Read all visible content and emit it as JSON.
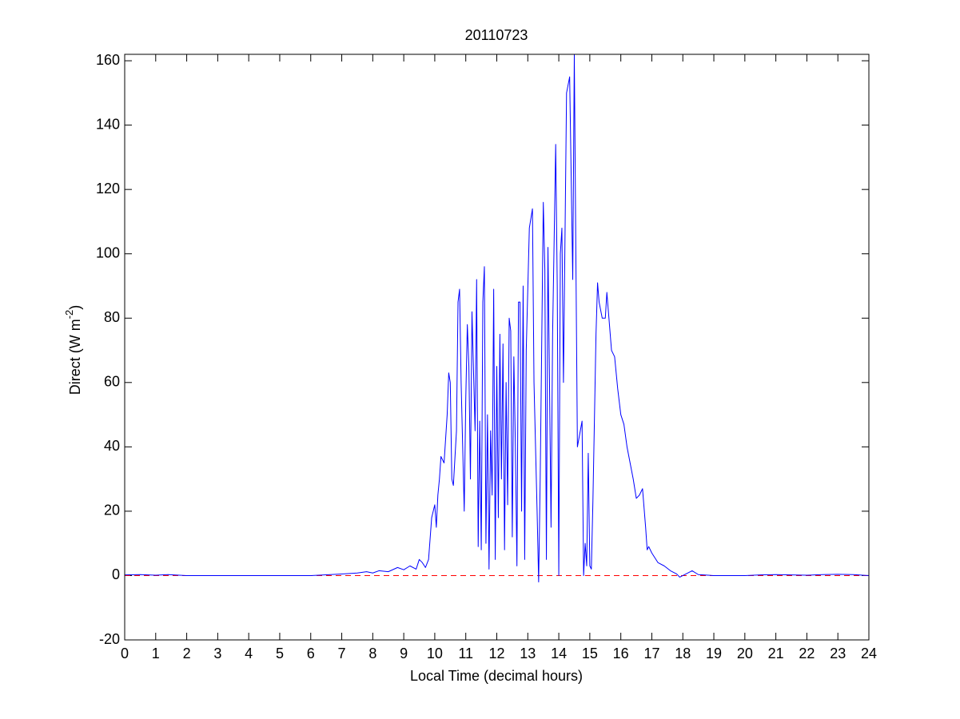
{
  "chart_data": {
    "type": "line",
    "title": "20110723",
    "xlabel": "Local Time (decimal hours)",
    "ylabel": [
      "Direct (W m",
      "-2",
      ")"
    ],
    "xlim": [
      0,
      24
    ],
    "ylim": [
      -20,
      162
    ],
    "xticks": [
      0,
      1,
      2,
      3,
      4,
      5,
      6,
      7,
      8,
      9,
      10,
      11,
      12,
      13,
      14,
      15,
      16,
      17,
      18,
      19,
      20,
      21,
      22,
      23,
      24
    ],
    "yticks": [
      -20,
      0,
      20,
      40,
      60,
      80,
      100,
      120,
      140,
      160
    ],
    "reference_line": {
      "y": 0,
      "color": "#ff0000",
      "style": "dashed"
    },
    "x": [
      0,
      0.5,
      1,
      1.4,
      2,
      3,
      4,
      5,
      6,
      7,
      7.5,
      7.8,
      8,
      8.2,
      8.5,
      8.8,
      9,
      9.2,
      9.4,
      9.5,
      9.6,
      9.7,
      9.8,
      9.9,
      10,
      10.05,
      10.1,
      10.15,
      10.2,
      10.3,
      10.4,
      10.45,
      10.5,
      10.55,
      10.6,
      10.7,
      10.75,
      10.8,
      10.85,
      10.9,
      10.95,
      11,
      11.05,
      11.1,
      11.15,
      11.2,
      11.3,
      11.35,
      11.4,
      11.45,
      11.5,
      11.55,
      11.6,
      11.65,
      11.7,
      11.75,
      11.8,
      11.85,
      11.9,
      11.95,
      12,
      12.05,
      12.1,
      12.15,
      12.2,
      12.25,
      12.3,
      12.35,
      12.4,
      12.45,
      12.5,
      12.55,
      12.6,
      12.65,
      12.7,
      12.75,
      12.8,
      12.85,
      12.9,
      12.95,
      13.05,
      13.15,
      13.2,
      13.3,
      13.35,
      13.4,
      13.5,
      13.55,
      13.6,
      13.65,
      13.7,
      13.75,
      13.8,
      13.9,
      13.95,
      14,
      14.05,
      14.1,
      14.15,
      14.25,
      14.35,
      14.45,
      14.5,
      14.55,
      14.6,
      14.75,
      14.8,
      14.85,
      14.9,
      14.95,
      15,
      15.05,
      15.1,
      15.2,
      15.25,
      15.3,
      15.4,
      15.5,
      15.55,
      15.6,
      15.7,
      15.8,
      15.9,
      16,
      16.1,
      16.2,
      16.3,
      16.4,
      16.5,
      16.6,
      16.7,
      16.8,
      16.85,
      16.9,
      17,
      17.2,
      17.4,
      17.6,
      17.8,
      17.9,
      18.1,
      18.3,
      18.5,
      19,
      20,
      20.5,
      21,
      22,
      22.5,
      23,
      23.5,
      24
    ],
    "series": [
      {
        "color": "#0000ff",
        "values": [
          0.2,
          0.3,
          0.1,
          0.3,
          0,
          0,
          0,
          0,
          0,
          0.5,
          0.8,
          1.2,
          0.8,
          1.5,
          1.2,
          2.5,
          1.8,
          3,
          2,
          5,
          4,
          2.5,
          5,
          18,
          22,
          15,
          25,
          30,
          37,
          35,
          50,
          63,
          60,
          30,
          28,
          45,
          85,
          89,
          60,
          40,
          20,
          55,
          78,
          65,
          30,
          82,
          45,
          92,
          9,
          48,
          8,
          85,
          96,
          10,
          50,
          2,
          45,
          25,
          89,
          5,
          65,
          18,
          75,
          30,
          72,
          8,
          60,
          22,
          80,
          76,
          12,
          68,
          40,
          3,
          85,
          85,
          20,
          90,
          5,
          70,
          108,
          114,
          60,
          20,
          -2,
          30,
          116,
          95,
          5,
          102,
          60,
          15,
          75,
          134,
          90,
          0,
          100,
          108,
          60,
          150,
          155,
          92,
          162,
          100,
          40,
          48,
          0,
          10,
          3,
          38,
          3,
          2,
          23,
          75,
          91,
          85,
          80,
          80,
          88,
          82,
          70,
          68,
          58,
          50,
          47,
          40,
          35,
          30,
          24,
          25,
          27,
          15,
          8,
          9,
          7,
          4,
          3,
          1.5,
          0.5,
          -0.5,
          0.5,
          1.5,
          0.3,
          0,
          0,
          0.2,
          0.3,
          0.1,
          0.3,
          0.4,
          0.3,
          0
        ]
      }
    ]
  }
}
